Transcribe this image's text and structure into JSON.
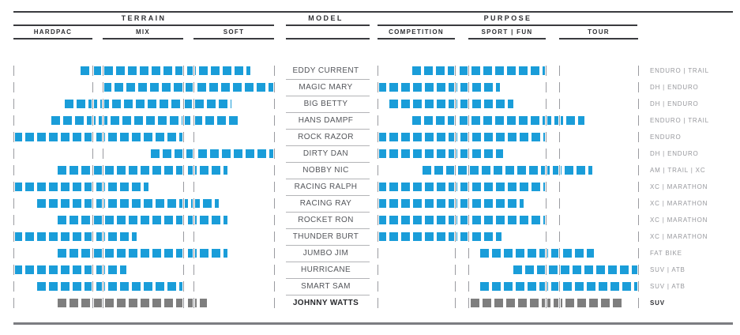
{
  "header": {
    "terrain": "TERRAIN",
    "model": "MODEL",
    "purpose": "PURPOSE",
    "terrain_sub": [
      "HARDPAC",
      "MIX",
      "SOFT"
    ],
    "purpose_sub": [
      "COMPETITION",
      "SPORT | FUN",
      "TOUR"
    ]
  },
  "colors": {
    "blue": "#1a9dd9",
    "gray": "#7e7e7e"
  },
  "chart_data": {
    "type": "bar",
    "orientation": "horizontal-range",
    "terrain_bands": [
      "HARDPAC",
      "MIX",
      "SOFT"
    ],
    "purpose_bands": [
      "COMPETITION",
      "SPORT | FUN",
      "TOUR"
    ],
    "units_note": "ranges expressed in band units 0-3 across each 3-band section",
    "rows": [
      {
        "model": "EDDY CURRENT",
        "terrain": [
          0.85,
          2.71
        ],
        "purpose": [
          0.45,
          2.0
        ],
        "category": "ENDURO | TRAIL"
      },
      {
        "model": "MAGIC MARY",
        "terrain": [
          1.0,
          3.0
        ],
        "purpose": [
          0.0,
          1.41
        ],
        "category": "DH | ENDURO"
      },
      {
        "model": "BIG BETTY",
        "terrain": [
          0.65,
          2.47
        ],
        "purpose": [
          0.15,
          1.58
        ],
        "category": "DH | ENDURO"
      },
      {
        "model": "HANS DAMPF",
        "terrain": [
          0.48,
          2.56
        ],
        "purpose": [
          0.45,
          2.32
        ],
        "category": "ENDURO | TRAIL"
      },
      {
        "model": "ROCK RAZOR",
        "terrain": [
          0.0,
          2.0
        ],
        "purpose": [
          0.0,
          2.0
        ],
        "category": "ENDURO"
      },
      {
        "model": "DIRTY DAN",
        "terrain": [
          1.6,
          3.0
        ],
        "purpose": [
          0.0,
          1.45
        ],
        "category": "DH | ENDURO"
      },
      {
        "model": "NOBBY NIC",
        "terrain": [
          0.56,
          2.42
        ],
        "purpose": [
          0.58,
          2.42
        ],
        "category": "AM | TRAIL | XC"
      },
      {
        "model": "RACING RALPH",
        "terrain": [
          0.0,
          1.57
        ],
        "purpose": [
          0.0,
          2.0
        ],
        "category": "XC | MARATHON"
      },
      {
        "model": "RACING RAY",
        "terrain": [
          0.3,
          2.31
        ],
        "purpose": [
          0.0,
          1.71
        ],
        "category": "XC | MARATHON"
      },
      {
        "model": "ROCKET RON",
        "terrain": [
          0.56,
          2.42
        ],
        "purpose": [
          0.0,
          2.0
        ],
        "category": "XC | MARATHON"
      },
      {
        "model": "THUNDER BURT",
        "terrain": [
          0.0,
          1.42
        ],
        "purpose": [
          0.0,
          1.43
        ],
        "category": "XC | MARATHON"
      },
      {
        "model": "JUMBO JIM",
        "terrain": [
          0.56,
          2.42
        ],
        "purpose": [
          1.15,
          2.44
        ],
        "category": "FAT BIKE"
      },
      {
        "model": "HURRICANE",
        "terrain": [
          0.0,
          1.29
        ],
        "purpose": [
          1.58,
          3.0
        ],
        "category": "SUV | ATB"
      },
      {
        "model": "SMART SAM",
        "terrain": [
          0.3,
          2.0
        ],
        "purpose": [
          1.15,
          3.0
        ],
        "category": "SUV | ATB"
      },
      {
        "model": "JOHNNY WATTS",
        "terrain": [
          0.56,
          2.17
        ],
        "purpose": [
          1.03,
          2.82
        ],
        "category": "SUV",
        "color": "gray",
        "emphasis": true
      }
    ]
  }
}
